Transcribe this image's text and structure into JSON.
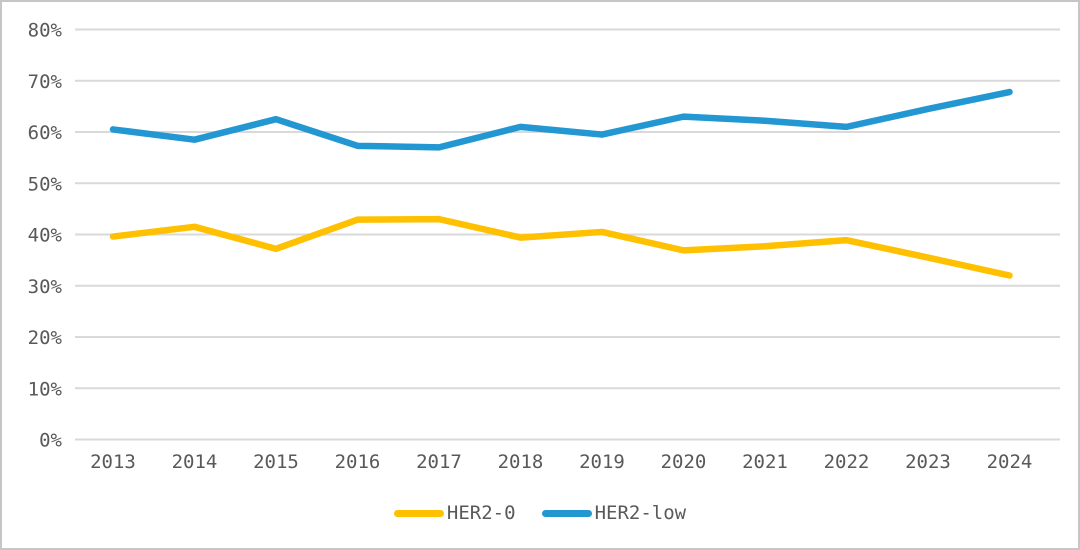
{
  "chart_data": {
    "type": "line",
    "title": "",
    "xlabel": "",
    "ylabel": "",
    "categories": [
      "2013",
      "2014",
      "2015",
      "2016",
      "2017",
      "2018",
      "2019",
      "2020",
      "2021",
      "2022",
      "2023",
      "2024"
    ],
    "series": [
      {
        "name": "HER2-0",
        "color": "#FFC000",
        "values": [
          39.6,
          41.5,
          37.2,
          42.9,
          43.0,
          39.4,
          40.5,
          36.9,
          37.7,
          38.9,
          35.5,
          32.0
        ]
      },
      {
        "name": "HER2-low",
        "color": "#2397D2",
        "values": [
          60.5,
          58.5,
          62.5,
          57.3,
          57.0,
          61.0,
          59.5,
          63.0,
          62.2,
          61.0,
          64.5,
          67.8
        ]
      }
    ],
    "ylim": [
      0,
      80
    ],
    "ytick_step": 10,
    "yticks": [
      "0%",
      "10%",
      "20%",
      "30%",
      "40%",
      "50%",
      "60%",
      "70%",
      "80%"
    ],
    "grid": true,
    "legend_position": "bottom",
    "grid_color": "#D9D9D9",
    "text_color": "#595959"
  }
}
